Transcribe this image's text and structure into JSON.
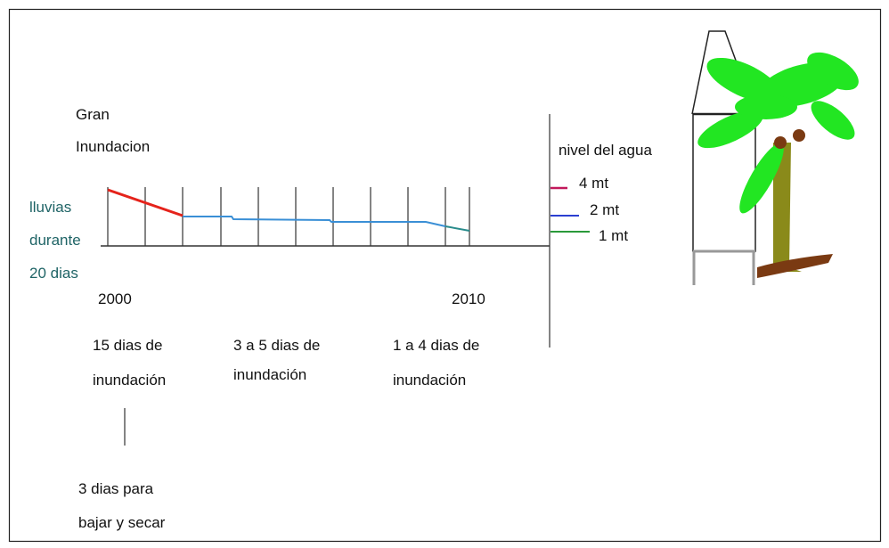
{
  "title": {
    "lines": [
      "Gran",
      "Inundacion"
    ]
  },
  "rain_note": {
    "lines": [
      "lluvias",
      "durante",
      "20 dias"
    ]
  },
  "timeline": {
    "start": "2000",
    "end": "2010"
  },
  "periods": [
    {
      "lines": [
        "15 dias de",
        "inundación"
      ]
    },
    {
      "lines": [
        "3 a 5 dias de",
        "inundación"
      ]
    },
    {
      "lines": [
        "1 a 4 dias de",
        "inundación"
      ]
    }
  ],
  "drying_note": {
    "lines": [
      "3 dias para",
      "bajar y secar"
    ]
  },
  "water_level": {
    "title": "nivel del agua",
    "levels": [
      "4 mt",
      "2 mt",
      "1 mt"
    ]
  }
}
